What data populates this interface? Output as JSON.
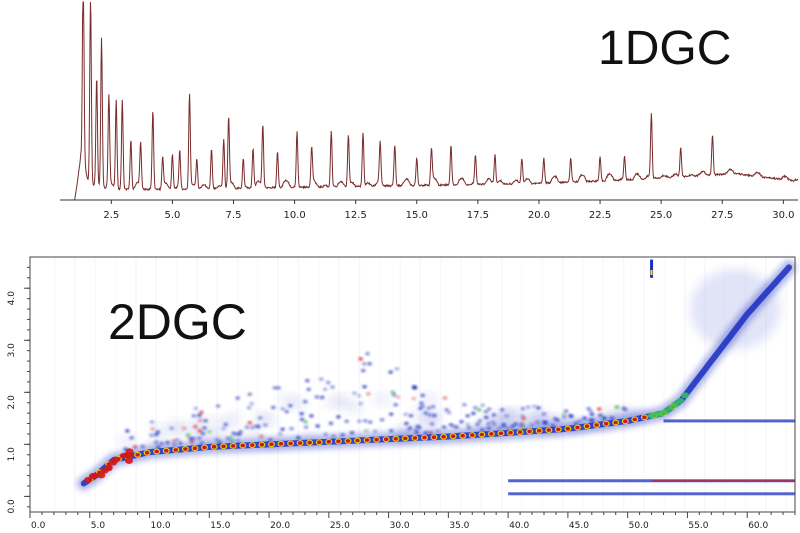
{
  "colors": {
    "trace": "#7a2b2b",
    "axis": "#333333",
    "heatmap_low": "#ffffff",
    "heatmap_mid": "#1a2fbf",
    "heatmap_high": "#d01818",
    "heatmap_peak": "#ffe000"
  },
  "chart_data": [
    {
      "type": "line",
      "title": "1DGC",
      "xlabel": "",
      "ylabel": "",
      "xlim": [
        0.4,
        30.6
      ],
      "x_ticks": [
        2.5,
        5.0,
        7.5,
        10.0,
        12.5,
        15.0,
        17.5,
        20.0,
        22.5,
        25.0,
        27.5,
        30.0
      ],
      "x_tick_labels": [
        "2.5",
        "5.0",
        "7.5",
        "10.0",
        "12.5",
        "15.0",
        "17.5",
        "20.0",
        "22.5",
        "25.0",
        "27.5",
        "30.0"
      ],
      "baseline_points": [
        [
          0.4,
          0.0
        ],
        [
          1.0,
          0.0
        ],
        [
          1.25,
          0.2
        ],
        [
          1.6,
          0.08
        ],
        [
          2.5,
          0.05
        ],
        [
          5.0,
          0.05
        ],
        [
          10.0,
          0.06
        ],
        [
          15.0,
          0.07
        ],
        [
          20.0,
          0.08
        ],
        [
          24.0,
          0.1
        ],
        [
          28.0,
          0.13
        ],
        [
          30.6,
          0.09
        ]
      ],
      "peaks": [
        {
          "x": 1.35,
          "y": 1.0
        },
        {
          "x": 1.65,
          "y": 0.95
        },
        {
          "x": 1.9,
          "y": 0.55
        },
        {
          "x": 2.1,
          "y": 0.75
        },
        {
          "x": 2.4,
          "y": 0.45
        },
        {
          "x": 2.7,
          "y": 0.45
        },
        {
          "x": 2.95,
          "y": 0.45
        },
        {
          "x": 3.3,
          "y": 0.25
        },
        {
          "x": 3.7,
          "y": 0.22
        },
        {
          "x": 4.2,
          "y": 0.4
        },
        {
          "x": 4.6,
          "y": 0.15
        },
        {
          "x": 5.0,
          "y": 0.18
        },
        {
          "x": 5.3,
          "y": 0.2
        },
        {
          "x": 5.7,
          "y": 0.48
        },
        {
          "x": 6.0,
          "y": 0.15
        },
        {
          "x": 6.6,
          "y": 0.2
        },
        {
          "x": 7.1,
          "y": 0.25
        },
        {
          "x": 7.3,
          "y": 0.35
        },
        {
          "x": 7.9,
          "y": 0.15
        },
        {
          "x": 8.3,
          "y": 0.2
        },
        {
          "x": 8.7,
          "y": 0.32
        },
        {
          "x": 9.3,
          "y": 0.18
        },
        {
          "x": 10.1,
          "y": 0.28
        },
        {
          "x": 10.7,
          "y": 0.18
        },
        {
          "x": 11.5,
          "y": 0.28
        },
        {
          "x": 12.2,
          "y": 0.26
        },
        {
          "x": 12.8,
          "y": 0.27
        },
        {
          "x": 13.5,
          "y": 0.2
        },
        {
          "x": 14.1,
          "y": 0.2
        },
        {
          "x": 15.0,
          "y": 0.14
        },
        {
          "x": 15.6,
          "y": 0.17
        },
        {
          "x": 16.4,
          "y": 0.2
        },
        {
          "x": 17.4,
          "y": 0.15
        },
        {
          "x": 18.2,
          "y": 0.15
        },
        {
          "x": 19.3,
          "y": 0.13
        },
        {
          "x": 20.2,
          "y": 0.12
        },
        {
          "x": 21.3,
          "y": 0.12
        },
        {
          "x": 22.5,
          "y": 0.12
        },
        {
          "x": 23.5,
          "y": 0.12
        },
        {
          "x": 24.6,
          "y": 0.33
        },
        {
          "x": 25.8,
          "y": 0.15
        },
        {
          "x": 27.1,
          "y": 0.2
        }
      ]
    },
    {
      "type": "heatmap",
      "title": "2DGC",
      "xlabel": "",
      "ylabel": "",
      "xlim": [
        0.0,
        64.0
      ],
      "ylim": [
        -0.3,
        4.6
      ],
      "x_ticks": [
        0.0,
        5.0,
        10.0,
        15.0,
        20.0,
        25.0,
        30.0,
        35.0,
        40.0,
        45.0,
        50.0,
        55.0,
        60.0
      ],
      "x_tick_labels": [
        "0.0",
        "5.0",
        "10.0",
        "15.0",
        "20.0",
        "25.0",
        "30.0",
        "35.0",
        "40.0",
        "45.0",
        "50.0",
        "55.0",
        "60.0"
      ],
      "y_ticks": [
        0.0,
        1.0,
        2.0,
        3.0,
        4.0
      ],
      "y_tick_labels": [
        "0.0",
        "1.0",
        "2.0",
        "3.0",
        "4.0"
      ],
      "main_band": [
        [
          4.5,
          0.25
        ],
        [
          5.5,
          0.4
        ],
        [
          7.0,
          0.7
        ],
        [
          10.0,
          0.85
        ],
        [
          15.0,
          0.95
        ],
        [
          20.0,
          1.0
        ],
        [
          25.0,
          1.05
        ],
        [
          30.0,
          1.1
        ],
        [
          35.0,
          1.15
        ],
        [
          40.0,
          1.22
        ],
        [
          45.0,
          1.3
        ],
        [
          50.0,
          1.45
        ],
        [
          53.0,
          1.6
        ],
        [
          54.5,
          1.85
        ],
        [
          57.0,
          2.6
        ],
        [
          60.0,
          3.5
        ],
        [
          63.5,
          4.4
        ]
      ],
      "spread_region": [
        [
          8.0,
          1.2
        ],
        [
          15.0,
          1.7
        ],
        [
          20.0,
          2.0
        ],
        [
          25.0,
          2.3
        ],
        [
          29.0,
          2.8
        ],
        [
          35.0,
          1.8
        ],
        [
          45.0,
          1.6
        ],
        [
          52.0,
          1.7
        ]
      ],
      "horizontal_streaks": [
        {
          "y": 1.45,
          "x_start": 53.0,
          "x_end": 64.0
        },
        {
          "y": 0.3,
          "x_start": 40.0,
          "x_end": 64.0
        },
        {
          "y": 0.05,
          "x_start": 40.0,
          "x_end": 64.0
        }
      ],
      "vertical_streak": {
        "x": 52.0,
        "y_start": 4.2,
        "y_end": 4.55
      }
    }
  ]
}
